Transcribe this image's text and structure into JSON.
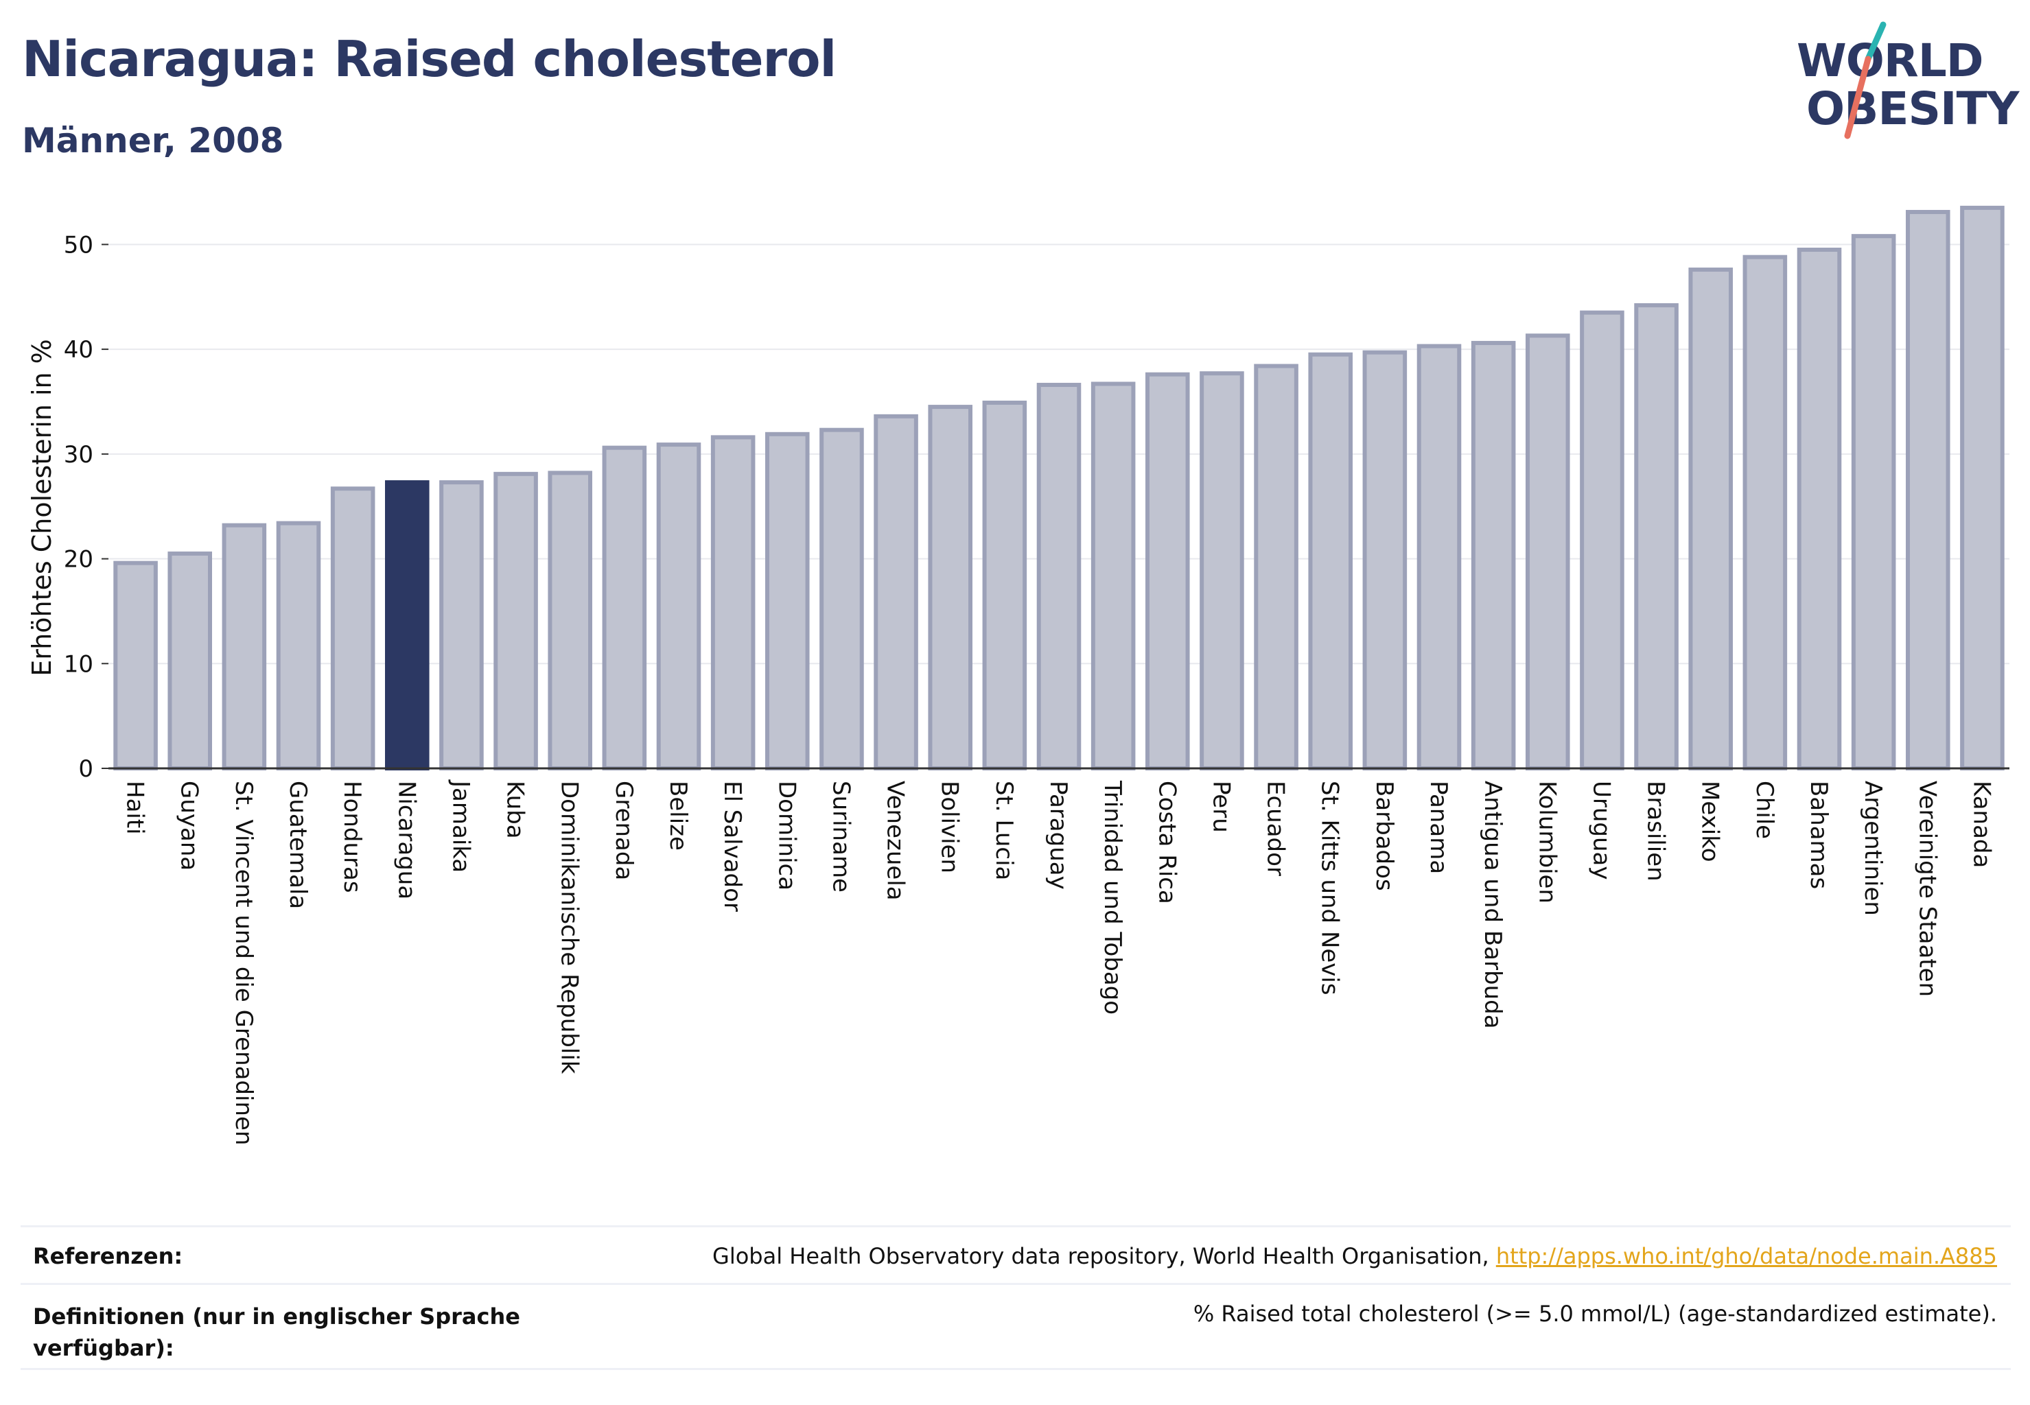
{
  "header": {
    "title": "Nicaragua: Raised cholesterol",
    "subtitle": "Männer, 2008",
    "logo_line1": "WORLD",
    "logo_line2": "OBESITY"
  },
  "chart_data": {
    "type": "bar",
    "title": "Nicaragua: Raised cholesterol",
    "subtitle": "Männer, 2008",
    "ylabel": "Erhöhtes Cholesterin in %",
    "xlabel": "",
    "ylim": [
      0,
      55
    ],
    "yticks": [
      0,
      10,
      20,
      30,
      40,
      50
    ],
    "grid": true,
    "highlight": "Nicaragua",
    "categories": [
      "Haiti",
      "Guyana",
      "St. Vincent und die Grenadinen",
      "Guatemala",
      "Honduras",
      "Nicaragua",
      "Jamaika",
      "Kuba",
      "Dominikanische Republik",
      "Grenada",
      "Belize",
      "El Salvador",
      "Dominica",
      "Suriname",
      "Venezuela",
      "Bolivien",
      "St. Lucia",
      "Paraguay",
      "Trinidad und Tobago",
      "Costa Rica",
      "Peru",
      "Ecuador",
      "St. Kitts und Nevis",
      "Barbados",
      "Panama",
      "Antigua und Barbuda",
      "Kolumbien",
      "Uruguay",
      "Brasilien",
      "Mexiko",
      "Chile",
      "Bahamas",
      "Argentinien",
      "Vereinigte Staaten",
      "Kanada"
    ],
    "values": [
      19.6,
      20.5,
      23.2,
      23.4,
      26.7,
      27.3,
      27.3,
      28.1,
      28.2,
      30.6,
      30.9,
      31.6,
      31.9,
      32.3,
      33.6,
      34.5,
      34.9,
      36.6,
      36.7,
      37.6,
      37.7,
      38.4,
      39.5,
      39.7,
      40.3,
      40.6,
      41.3,
      43.5,
      44.2,
      47.6,
      48.8,
      49.5,
      50.8,
      53.1,
      53.5
    ],
    "colors": {
      "bar": "#c0c3d0",
      "bar_border": "#9ca1b8",
      "highlight": "#2c3863",
      "grid": "#e8e9ee",
      "axis": "#333333"
    }
  },
  "footer": {
    "ref_label": "Referenzen:",
    "ref_text": "Global Health Observatory data repository, World Health Organisation, ",
    "ref_link": "http://apps.who.int/gho/data/node.main.A885",
    "def_label_line1": "Definitionen (nur in englischer Sprache",
    "def_label_line2": "verfügbar):",
    "def_text": "% Raised total cholesterol (>= 5.0 mmol/L) (age-standardized estimate)."
  }
}
